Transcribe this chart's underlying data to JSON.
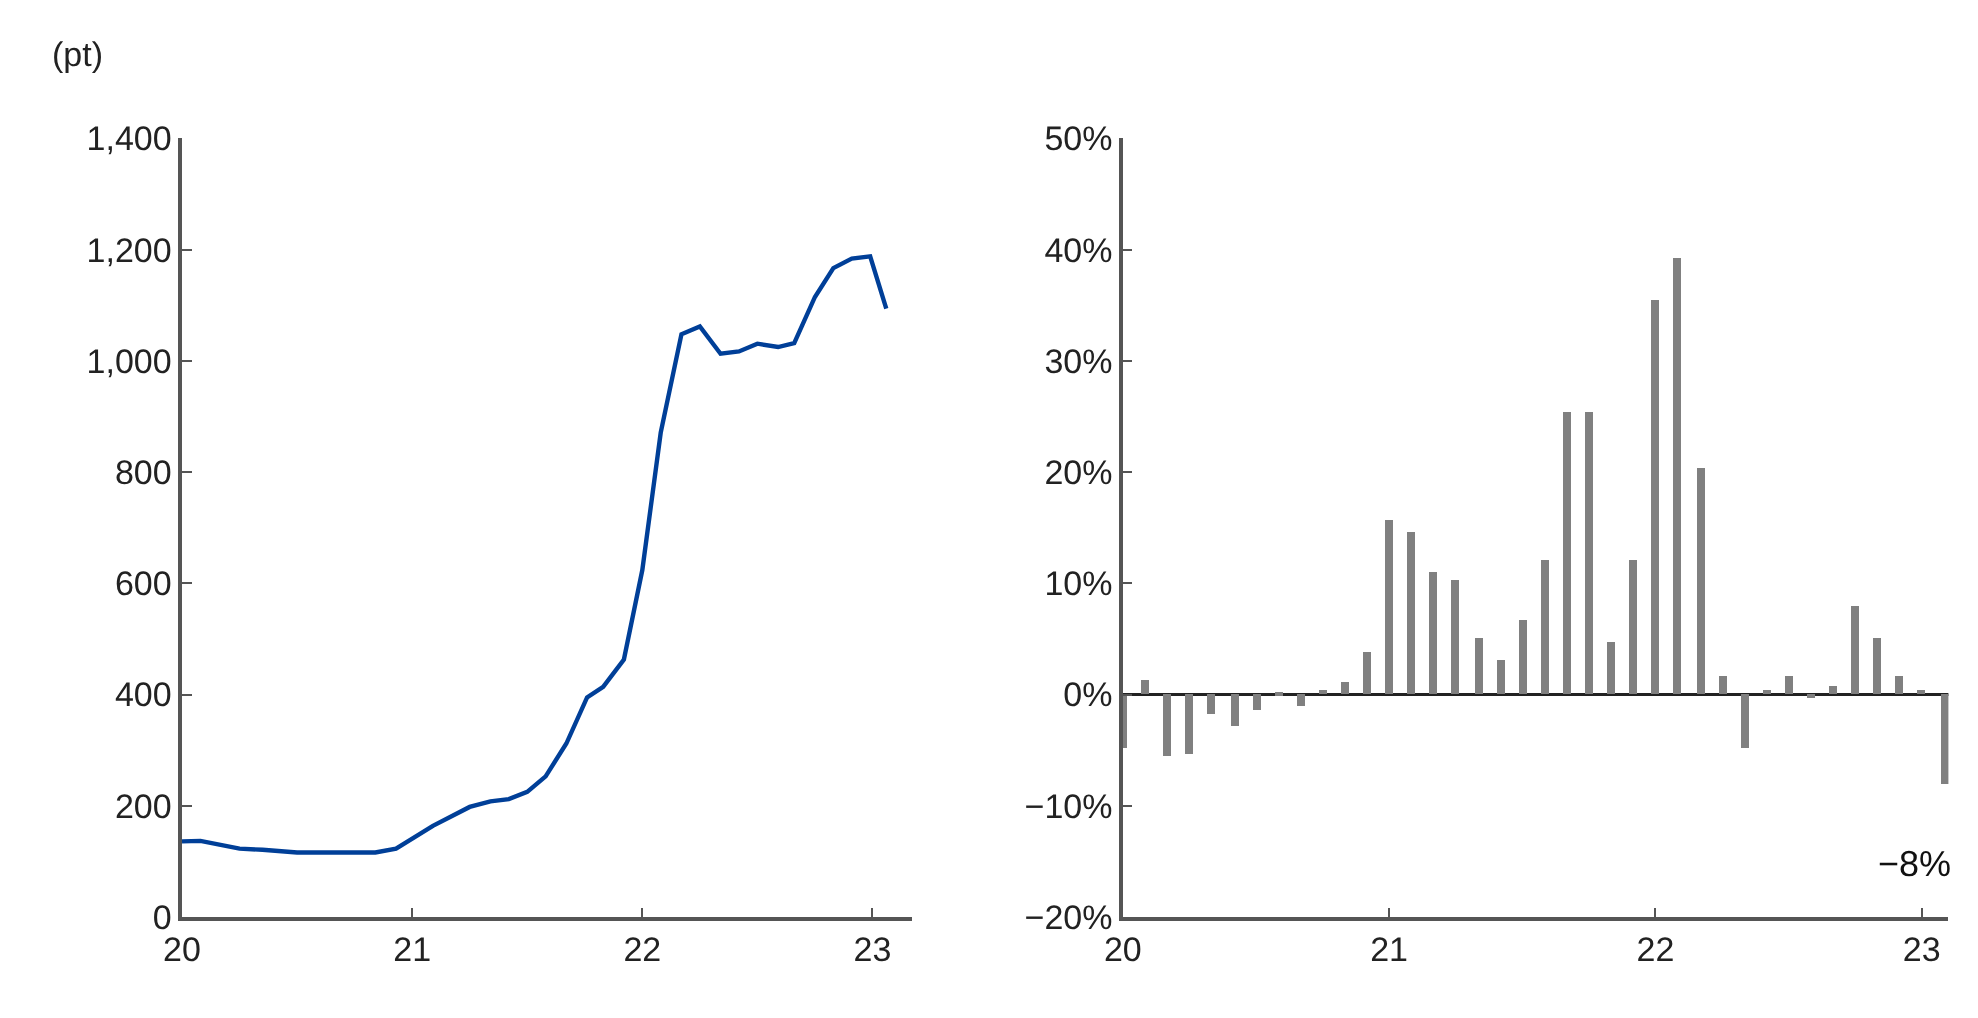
{
  "chart_data": [
    {
      "type": "line",
      "ylabel": "(pt)",
      "x": [
        20.0,
        20.08,
        20.25,
        20.35,
        20.5,
        20.84,
        20.93,
        21.09,
        21.25,
        21.34,
        21.42,
        21.5,
        21.58,
        21.67,
        21.76,
        21.83,
        21.92,
        22.0,
        22.08,
        22.17,
        22.25,
        22.34,
        22.42,
        22.5,
        22.59,
        22.66,
        22.75,
        22.83,
        22.91,
        22.99,
        23.06
      ],
      "series": [
        {
          "color": "#003f98",
          "values": [
            136,
            137,
            123,
            121,
            116,
            116,
            123,
            164,
            198,
            208,
            212,
            225,
            253,
            312,
            395,
            414,
            463,
            624,
            871,
            1048,
            1062,
            1013,
            1017,
            1031,
            1025,
            1032,
            1115,
            1167,
            1184,
            1188,
            1094
          ]
        }
      ],
      "xlim": [
        20,
        23.17
      ],
      "xticks": [
        20,
        21,
        22,
        23
      ],
      "ylim": [
        0,
        1400
      ],
      "yticks": [
        0,
        200,
        400,
        600,
        800,
        {
          "value": 1000,
          "label": "1,000"
        },
        {
          "value": 1200,
          "label": "1,200"
        },
        {
          "value": 1400,
          "label": "1,400"
        }
      ],
      "line_style": "solid",
      "marker": "none"
    },
    {
      "type": "bar",
      "x": [
        20.0,
        20.083,
        20.167,
        20.25,
        20.333,
        20.417,
        20.5,
        20.583,
        20.667,
        20.75,
        20.833,
        20.917,
        21.0,
        21.083,
        21.167,
        21.25,
        21.333,
        21.417,
        21.5,
        21.583,
        21.667,
        21.75,
        21.833,
        21.917,
        22.0,
        22.083,
        22.167,
        22.25,
        22.333,
        22.417,
        22.5,
        22.583,
        22.667,
        22.75,
        22.833,
        22.917,
        23.0,
        23.083
      ],
      "series": [
        {
          "color": "#808080",
          "values": [
            -4.9,
            1.3,
            -5.6,
            -5.4,
            -1.8,
            -2.8,
            -1.4,
            0.1,
            -1.0,
            0.4,
            1.1,
            3.7,
            15.7,
            14.6,
            10.9,
            10.2,
            5.1,
            3.0,
            6.7,
            12.1,
            25.4,
            25.4,
            4.6,
            12.1,
            35.5,
            39.3,
            20.4,
            1.6,
            -4.8,
            0.4,
            1.6,
            -0.4,
            0.7,
            7.9,
            5.0,
            1.6,
            0.4,
            -8
          ]
        }
      ],
      "annotations": [
        {
          "text": "−8%",
          "x": 23.083,
          "y": -8
        }
      ],
      "xlim": [
        20,
        23.1
      ],
      "xticks": [
        20,
        21,
        22,
        23
      ],
      "ylim": [
        -20,
        50
      ],
      "yticks": [
        {
          "value": -20,
          "label": "−20%"
        },
        {
          "value": -10,
          "label": "−10%"
        },
        {
          "value": 0,
          "label": "0%"
        },
        {
          "value": 10,
          "label": "10%"
        },
        {
          "value": 20,
          "label": "20%"
        },
        {
          "value": 30,
          "label": "30%"
        },
        {
          "value": 40,
          "label": "40%"
        },
        {
          "value": 50,
          "label": "50%"
        }
      ],
      "ref_lines": [
        {
          "axis": "y",
          "value": 0,
          "color": "#222222"
        }
      ]
    }
  ]
}
